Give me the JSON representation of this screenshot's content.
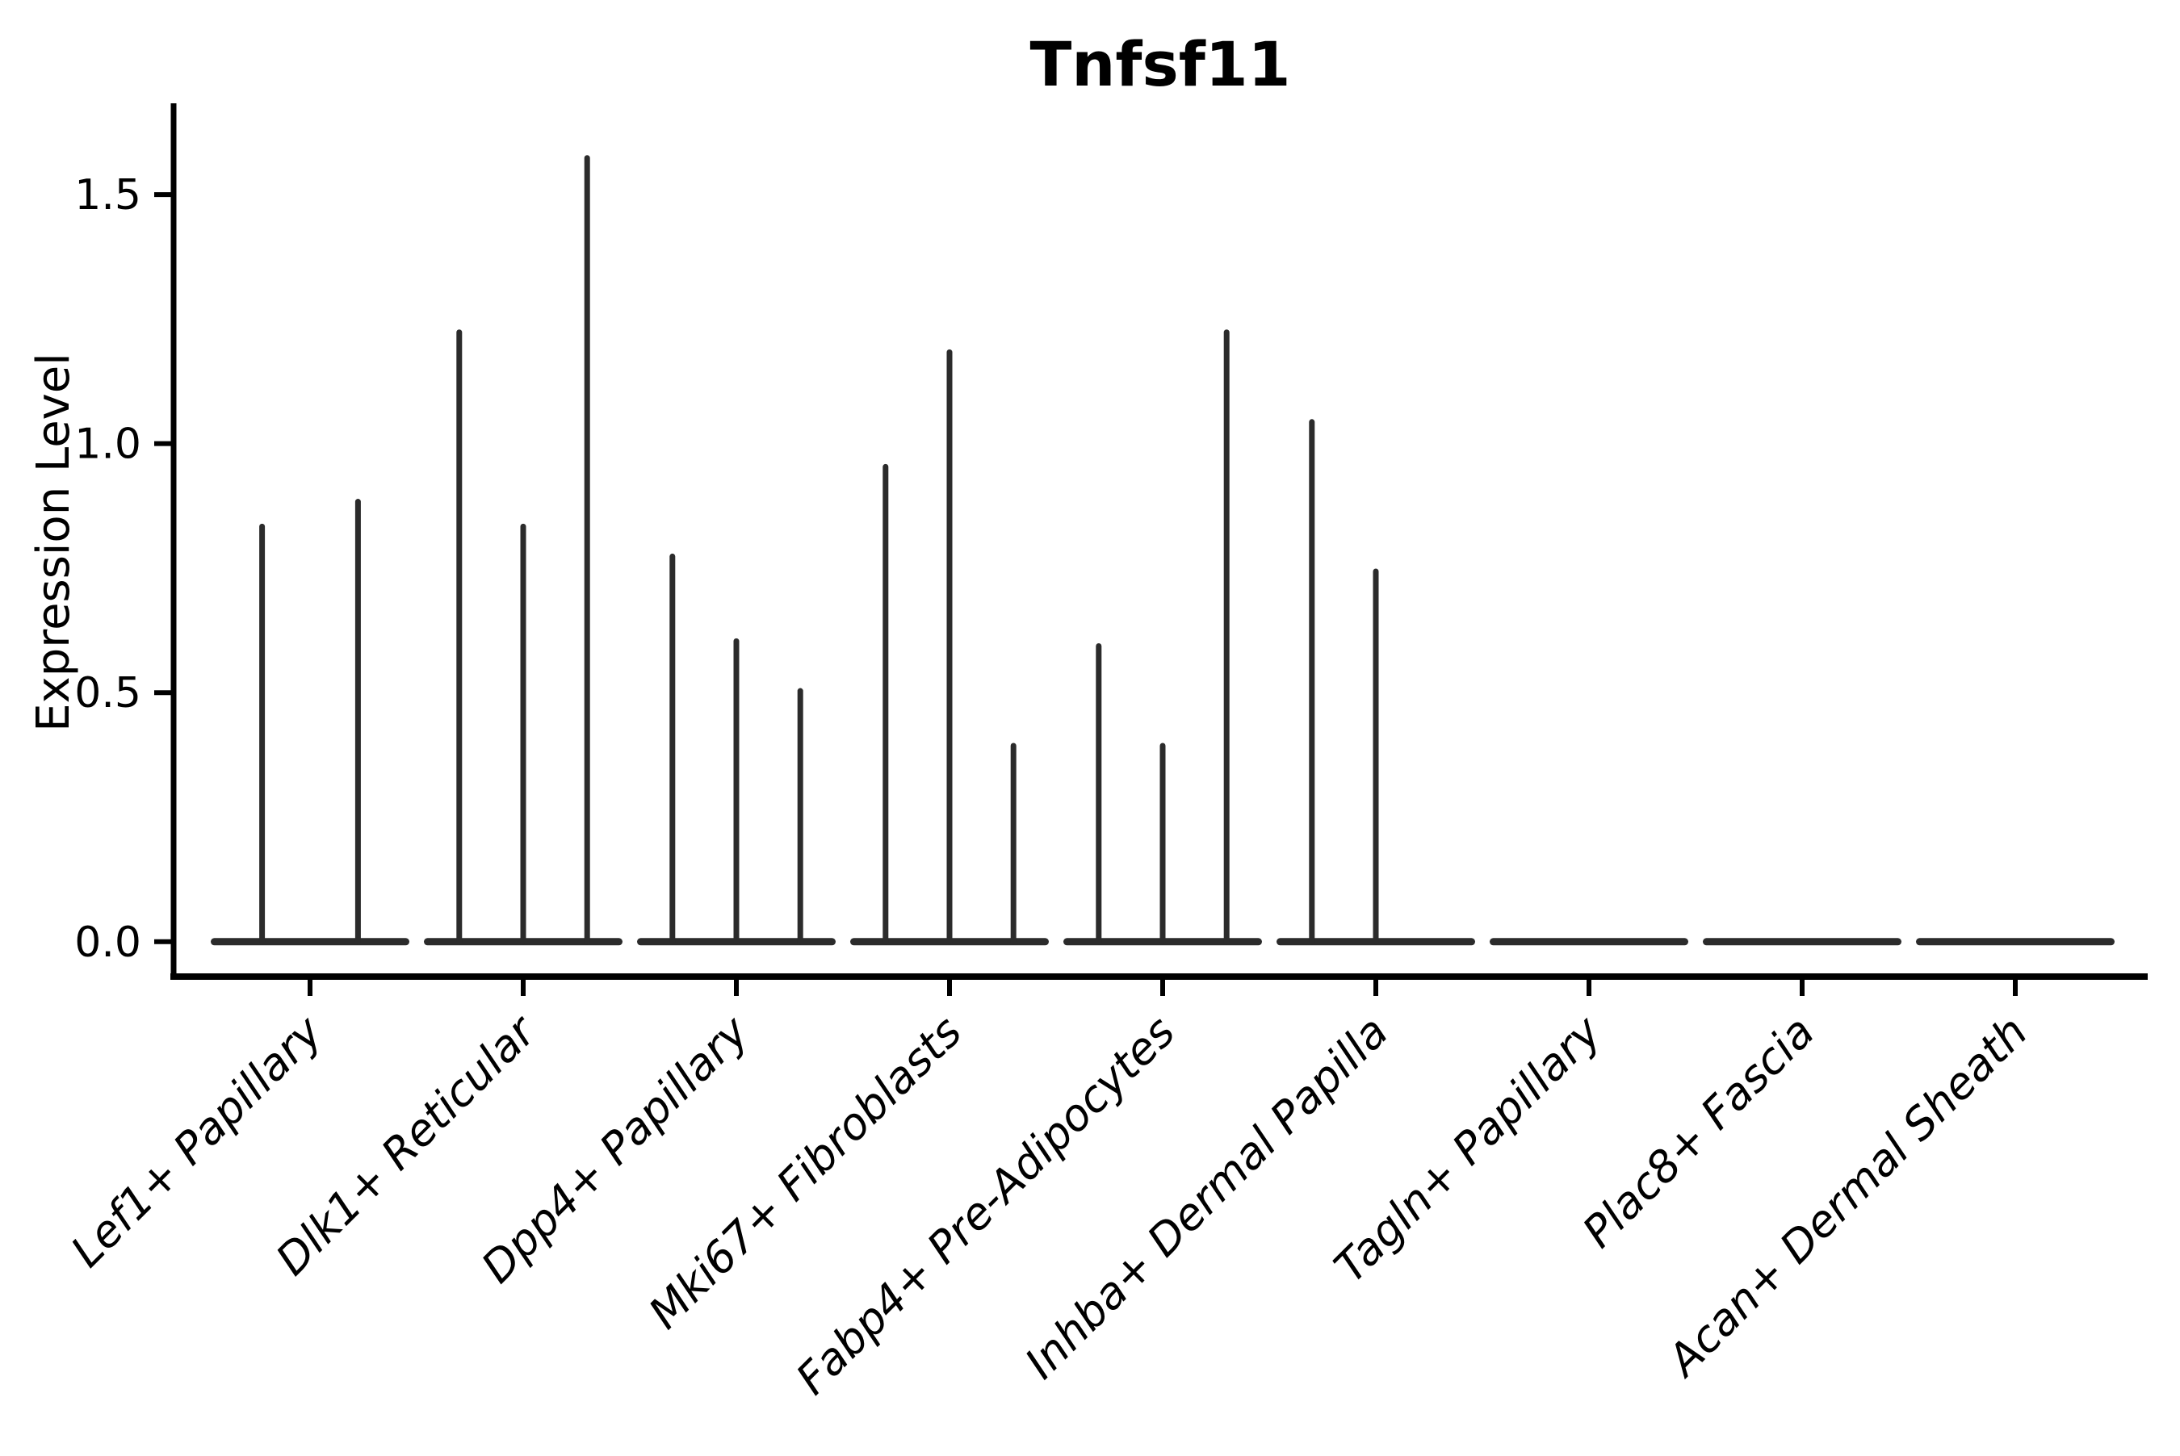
{
  "figure": {
    "background": "#ffffff"
  },
  "chart_data": {
    "type": "violin",
    "title": "Tnfsf11",
    "ylabel": "Expression Level",
    "xlabel": "",
    "grid": false,
    "legend": null,
    "violin_color": "#2b2b2b",
    "axis_color": "#000000",
    "ytick_labels": [
      "0.0",
      "0.5",
      "1.0",
      "1.5"
    ],
    "ytick_values": [
      0.0,
      0.5,
      1.0,
      1.5
    ],
    "ylim": [
      -0.07,
      1.68
    ],
    "x_label_rotation": 45,
    "x_label_style": "italic",
    "categories": [
      "Lef1+ Papillary",
      "Dlk1+ Reticular",
      "Dpp4+ Papillary",
      "Mki67+ Fibroblasts",
      "Fabp4+ Pre-Adipocytes",
      "Inhba+ Dermal Papilla",
      "Tagln+ Papillary",
      "Plac8+ Fascia",
      "Acan+ Dermal Sheath"
    ],
    "series": [
      {
        "category": "Lef1+ Papillary",
        "base_value": 0,
        "spikes": [
          {
            "offset": -0.225,
            "value": 0.84
          },
          {
            "offset": 0.225,
            "value": 0.89
          }
        ]
      },
      {
        "category": "Dlk1+ Reticular",
        "base_value": 0,
        "spikes": [
          {
            "offset": -0.3,
            "value": 1.23
          },
          {
            "offset": 0.0,
            "value": 0.84
          },
          {
            "offset": 0.3,
            "value": 1.58
          }
        ]
      },
      {
        "category": "Dpp4+ Papillary",
        "base_value": 0,
        "spikes": [
          {
            "offset": -0.3,
            "value": 0.78
          },
          {
            "offset": 0.0,
            "value": 0.61
          },
          {
            "offset": 0.3,
            "value": 0.51
          }
        ]
      },
      {
        "category": "Mki67+ Fibroblasts",
        "base_value": 0,
        "spikes": [
          {
            "offset": -0.3,
            "value": 0.96
          },
          {
            "offset": 0.0,
            "value": 1.19
          },
          {
            "offset": 0.3,
            "value": 0.4
          }
        ]
      },
      {
        "category": "Fabp4+ Pre-Adipocytes",
        "base_value": 0,
        "spikes": [
          {
            "offset": -0.3,
            "value": 0.6
          },
          {
            "offset": 0.0,
            "value": 0.4
          },
          {
            "offset": 0.3,
            "value": 1.23
          }
        ]
      },
      {
        "category": "Inhba+ Dermal Papilla",
        "base_value": 0,
        "spikes": [
          {
            "offset": -0.3,
            "value": 1.05
          },
          {
            "offset": 0.0,
            "value": 0.75
          }
        ]
      },
      {
        "category": "Tagln+ Papillary",
        "base_value": 0,
        "spikes": []
      },
      {
        "category": "Plac8+ Fascia",
        "base_value": 0,
        "spikes": []
      },
      {
        "category": "Acan+ Dermal Sheath",
        "base_value": 0,
        "spikes": []
      }
    ]
  }
}
